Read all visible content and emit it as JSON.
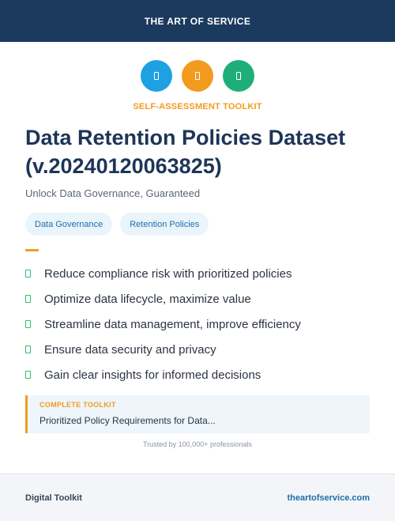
{
  "header": {
    "brand": "THE ART OF SERVICE"
  },
  "icons": [
    {
      "name": "shield-icon",
      "color": "#1da1e2"
    },
    {
      "name": "clipboard-icon",
      "color": "#f29b1e"
    },
    {
      "name": "check-icon",
      "color": "#1fae7a"
    }
  ],
  "eyebrow": "SELF-ASSESSMENT TOOLKIT",
  "title": "Data Retention Policies Dataset (v.20240120063825)",
  "subtitle": "Unlock Data Governance, Guaranteed",
  "tags": [
    "Data Governance",
    "Retention Policies"
  ],
  "benefits": [
    "Reduce compliance risk with prioritized policies",
    "Optimize data lifecycle, maximize value",
    "Streamline data management, improve efficiency",
    "Ensure data security and privacy",
    "Gain clear insights for informed decisions"
  ],
  "toolkit": {
    "label": "COMPLETE TOOLKIT",
    "text": "Prioritized Policy Requirements for Data..."
  },
  "trusted": "Trusted by 100,000+ professionals",
  "footer": {
    "left": "Digital Toolkit",
    "right": "theartofservice.com"
  },
  "colors": {
    "navy": "#1c3a5e",
    "accent": "#f29b1e",
    "check": "#2fbf71"
  }
}
